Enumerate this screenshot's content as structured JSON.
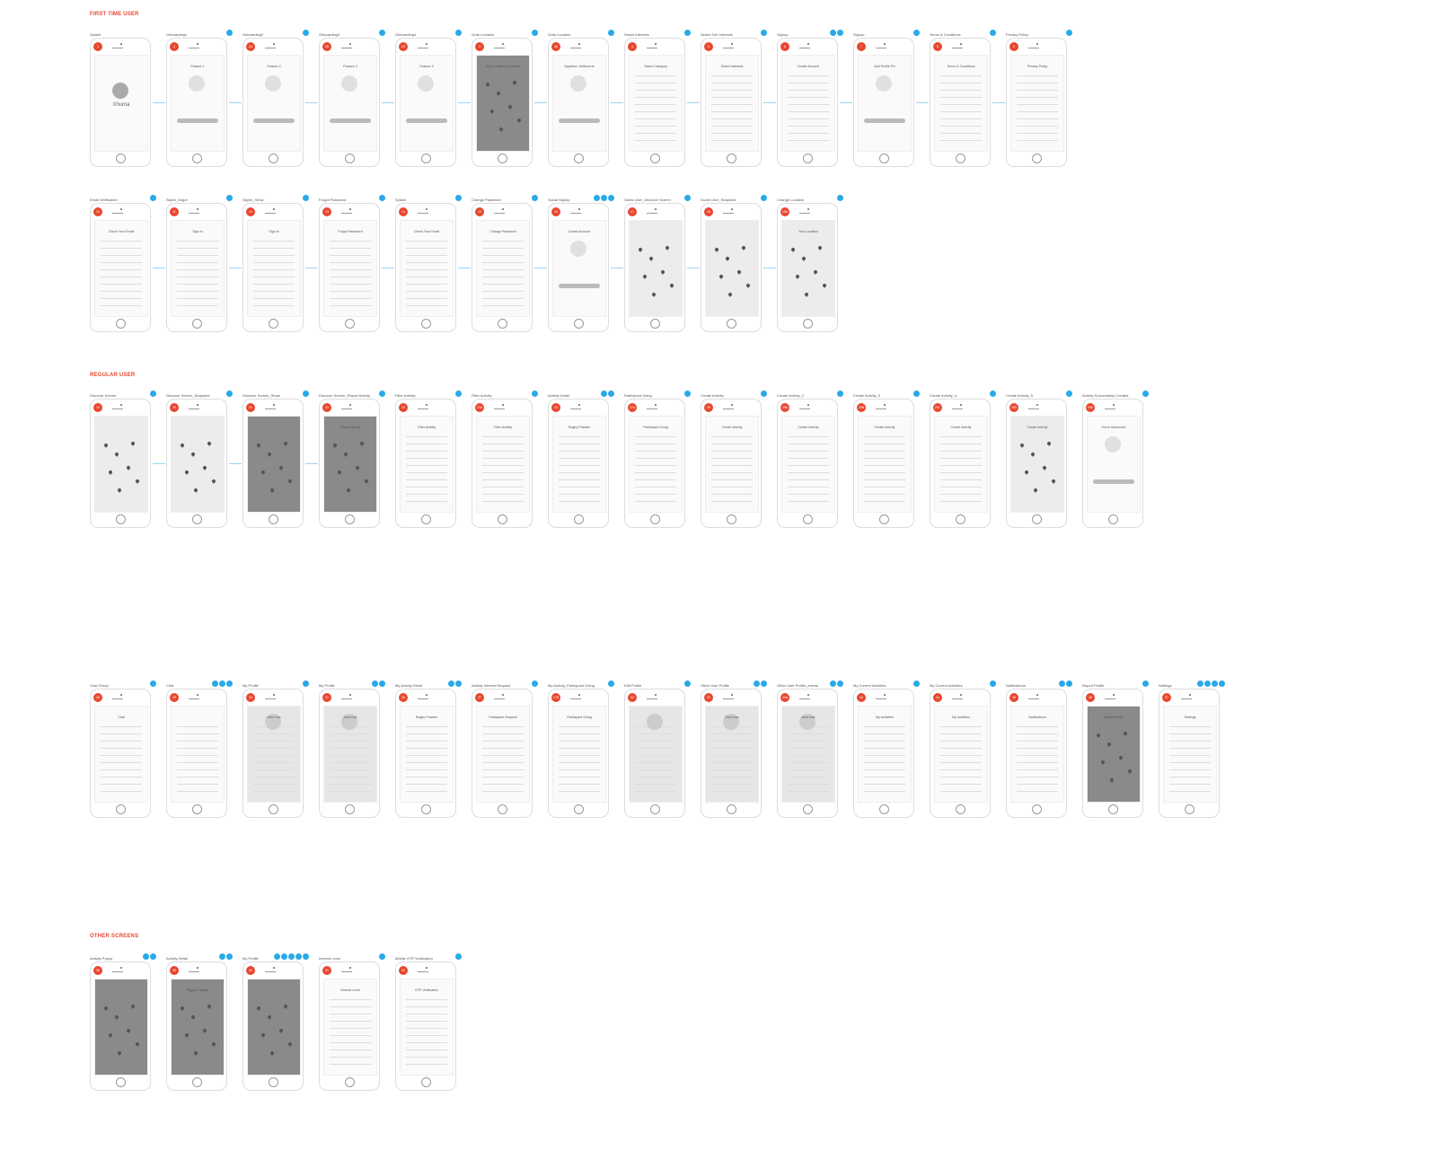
{
  "colors": {
    "section": "#e8472f",
    "badge": "#e8472f",
    "note": "#29a9e8"
  },
  "sections": [
    {
      "label": "FIRST TIME USER"
    },
    {
      "label": "REGULAR USER"
    },
    {
      "label": "OTHER SCREENS"
    }
  ],
  "rows": [
    {
      "screens": [
        {
          "title": "Splash",
          "badge": "1",
          "notes": 0,
          "style": "splash",
          "heading": "Xhuma"
        },
        {
          "title": "Onboarding1",
          "badge": "2",
          "notes": 1,
          "style": "onboard",
          "heading": "Feature 1"
        },
        {
          "title": "Onboarding2",
          "badge": "2A",
          "notes": 1,
          "style": "onboard",
          "heading": "Feature 2"
        },
        {
          "title": "Onboarding3",
          "badge": "2B",
          "notes": 1,
          "style": "onboard",
          "heading": "Feature 3"
        },
        {
          "title": "Onboarding4",
          "badge": "2C",
          "notes": 1,
          "style": "onboard",
          "heading": "Feature 4"
        },
        {
          "title": "Grab Location",
          "badge": "3",
          "notes": 1,
          "style": "dark",
          "heading": "Allow Location Services"
        },
        {
          "title": "Grab Location",
          "badge": "3A",
          "notes": 1,
          "style": "onboard",
          "heading": "Appleton, Melbourne"
        },
        {
          "title": "Select Interests",
          "badge": "4",
          "notes": 1,
          "style": "form",
          "heading": "Select Category"
        },
        {
          "title": "Select Sub Interests",
          "badge": "5",
          "notes": 1,
          "style": "form",
          "heading": "Select Interests"
        },
        {
          "title": "Signup",
          "badge": "6",
          "notes": 2,
          "style": "form",
          "heading": "Create Account"
        },
        {
          "title": "Signup",
          "badge": "7",
          "notes": 1,
          "style": "onboard",
          "heading": "Add Profile Pic"
        },
        {
          "title": "Terms & Conditions",
          "badge": "8",
          "notes": 1,
          "style": "text",
          "heading": "Terms & Conditions"
        },
        {
          "title": "Privacy Policy",
          "badge": "9",
          "notes": 1,
          "style": "text",
          "heading": "Privacy Policy"
        }
      ]
    },
    {
      "screens": [
        {
          "title": "Email Verification",
          "badge": "10",
          "notes": 1,
          "style": "form",
          "heading": "Check Your Email"
        },
        {
          "title": "Signin_forgot",
          "badge": "11",
          "notes": 1,
          "style": "form",
          "heading": "Sign In"
        },
        {
          "title": "Signin_Show",
          "badge": "12",
          "notes": 1,
          "style": "form",
          "heading": "Sign In"
        },
        {
          "title": "Forgot Password",
          "badge": "13",
          "notes": 1,
          "style": "form",
          "heading": "Forgot Password"
        },
        {
          "title": "Splash",
          "badge": "14",
          "notes": 1,
          "style": "form",
          "heading": "Check Your Email"
        },
        {
          "title": "Change Password",
          "badge": "15",
          "notes": 1,
          "style": "form",
          "heading": "Change Password"
        },
        {
          "title": "Social Signup",
          "badge": "16",
          "notes": 3,
          "style": "onboard",
          "heading": "Create Account"
        },
        {
          "title": "Guest User_Discover Screen",
          "badge": "17",
          "notes": 1,
          "style": "map",
          "heading": ""
        },
        {
          "title": "Guest User_Snapshot",
          "badge": "18",
          "notes": 1,
          "style": "map",
          "heading": ""
        },
        {
          "title": "Change Location",
          "badge": "18A",
          "notes": 1,
          "style": "map",
          "heading": "Your Location"
        }
      ]
    },
    {
      "screens": [
        {
          "title": "Discover Screen",
          "badge": "19",
          "notes": 1,
          "style": "map",
          "heading": ""
        },
        {
          "title": "Discover Screen_Snapshot",
          "badge": "20",
          "notes": 1,
          "style": "map",
          "heading": ""
        },
        {
          "title": "Discover Screen_Share",
          "badge": "21",
          "notes": 1,
          "style": "dark",
          "heading": ""
        },
        {
          "title": "Discover Screen_Report Activity",
          "badge": "22",
          "notes": 1,
          "style": "dark",
          "heading": "Report Activity"
        },
        {
          "title": "Filter Activity",
          "badge": "23",
          "notes": 1,
          "style": "form",
          "heading": "Filter Activity"
        },
        {
          "title": "Filter Activity",
          "badge": "23A",
          "notes": 1,
          "style": "form",
          "heading": "Filter Activity"
        },
        {
          "title": "Activity Detail",
          "badge": "24",
          "notes": 2,
          "style": "form",
          "heading": "Rugby Practice"
        },
        {
          "title": "Participant Going",
          "badge": "27A",
          "notes": 1,
          "style": "list",
          "heading": "Participant Going"
        },
        {
          "title": "Create Activity",
          "badge": "25",
          "notes": 1,
          "style": "form",
          "heading": "Create Activity"
        },
        {
          "title": "Create Activity_2",
          "badge": "25A",
          "notes": 1,
          "style": "form",
          "heading": "Create Activity"
        },
        {
          "title": "Create Activity_3",
          "badge": "25B",
          "notes": 1,
          "style": "form",
          "heading": "Create Activity"
        },
        {
          "title": "Create Activity_4",
          "badge": "25C",
          "notes": 1,
          "style": "form",
          "heading": "Create Activity"
        },
        {
          "title": "Create Activity_5",
          "badge": "25D",
          "notes": 1,
          "style": "map",
          "heading": "Create Activity"
        },
        {
          "title": "Activity Successfully Created",
          "badge": "25E",
          "notes": 1,
          "style": "onboard",
          "heading": "You're Awesome!"
        }
      ]
    },
    {
      "screens": [
        {
          "title": "Chat Group",
          "badge": "28",
          "notes": 1,
          "style": "list",
          "heading": "Chat"
        },
        {
          "title": "Chat",
          "badge": "29",
          "notes": 3,
          "style": "form",
          "heading": ""
        },
        {
          "title": "My Profile",
          "badge": "30",
          "notes": 1,
          "style": "grey",
          "heading": "John Doe"
        },
        {
          "title": "My Profile",
          "badge": "31",
          "notes": 2,
          "style": "grey",
          "heading": "John Doe"
        },
        {
          "title": "My Activity Detail",
          "badge": "26",
          "notes": 2,
          "style": "form",
          "heading": "Rugby Practice"
        },
        {
          "title": "Activity Interest Request",
          "badge": "27",
          "notes": 1,
          "style": "list",
          "heading": "Participant Request"
        },
        {
          "title": "My Activity_Participant Going",
          "badge": "27B",
          "notes": 1,
          "style": "list",
          "heading": "Participant Going"
        },
        {
          "title": "Edit Profile",
          "badge": "32",
          "notes": 1,
          "style": "grey",
          "heading": ""
        },
        {
          "title": "Other User Profile",
          "badge": "33",
          "notes": 2,
          "style": "grey",
          "heading": "John Doe"
        },
        {
          "title": "Other User Profile_events",
          "badge": "33A",
          "notes": 2,
          "style": "grey",
          "heading": "John Doe"
        },
        {
          "title": "My Current Activities",
          "badge": "34",
          "notes": 1,
          "style": "list",
          "heading": "My Activities"
        },
        {
          "title": "My Current Activities",
          "badge": "34",
          "notes": 1,
          "style": "list",
          "heading": "My Activities"
        },
        {
          "title": "Notifications",
          "badge": "35",
          "notes": 2,
          "style": "list",
          "heading": "Notifications"
        },
        {
          "title": "Report Profile",
          "badge": "36",
          "notes": 1,
          "style": "dark",
          "heading": "Report Profile"
        },
        {
          "title": "Settings",
          "badge": "37",
          "notes": 4,
          "style": "text",
          "heading": "Settings"
        }
      ]
    },
    {
      "screens": [
        {
          "title": "Activity Popup",
          "badge": "38",
          "notes": 2,
          "style": "dark",
          "heading": ""
        },
        {
          "title": "Activity Detail",
          "badge": "39",
          "notes": 2,
          "style": "dark",
          "heading": "Rugby Practice"
        },
        {
          "title": "My Profile",
          "badge": "40",
          "notes": 5,
          "style": "dark",
          "heading": ""
        },
        {
          "title": "Interest Level",
          "badge": "41",
          "notes": 1,
          "style": "form",
          "heading": "Interest Level"
        },
        {
          "title": "Mobile OTP Verification",
          "badge": "42",
          "notes": 1,
          "style": "form",
          "heading": "OTP Verification"
        }
      ]
    }
  ]
}
